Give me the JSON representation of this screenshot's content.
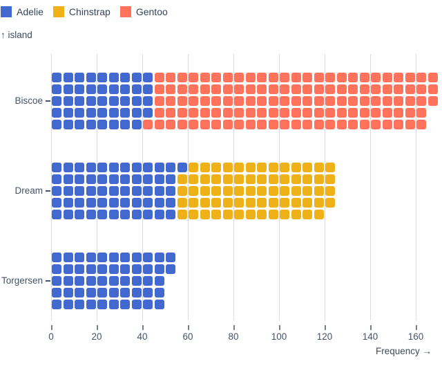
{
  "legend": {
    "items": [
      {
        "label": "Adelie",
        "color": "#4269d0"
      },
      {
        "label": "Chinstrap",
        "color": "#efb118"
      },
      {
        "label": "Gentoo",
        "color": "#ff725c"
      }
    ]
  },
  "axes": {
    "y_label": "↑ island",
    "x_label": "Frequency →",
    "x_ticks": [
      0,
      20,
      40,
      60,
      80,
      100,
      120,
      140,
      160
    ]
  },
  "chart_data": {
    "type": "waffle",
    "orientation": "horizontal",
    "xlabel": "Frequency",
    "ylabel": "island",
    "categories": [
      "Biscoe",
      "Dream",
      "Torgersen"
    ],
    "series": [
      {
        "name": "Adelie",
        "color": "#4269d0",
        "values": [
          44,
          56,
          52
        ]
      },
      {
        "name": "Chinstrap",
        "color": "#efb118",
        "values": [
          0,
          68,
          0
        ]
      },
      {
        "name": "Gentoo",
        "color": "#ff725c",
        "values": [
          124,
          0,
          0
        ]
      }
    ],
    "totals": [
      168,
      124,
      52
    ],
    "unit": 1,
    "cells_per_column": 5,
    "fill_order": "column-by-column, top-to-bottom within column",
    "xlim": [
      0,
      170
    ],
    "grid": true,
    "legend_position": "top-left"
  }
}
